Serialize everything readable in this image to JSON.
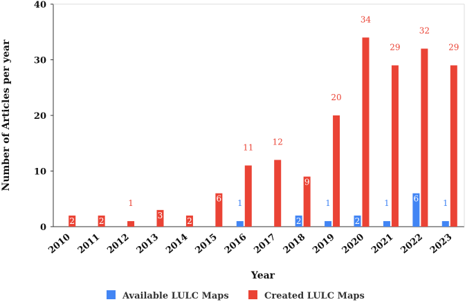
{
  "chart_data": {
    "type": "bar",
    "title": "",
    "xlabel": "Year",
    "ylabel": "Number of Articles per year",
    "ylim": [
      0,
      40
    ],
    "yticks": [
      0,
      10,
      20,
      30,
      40
    ],
    "grid": false,
    "legend_position": "bottom",
    "categories": [
      "2010",
      "2011",
      "2012",
      "2013",
      "2014",
      "2015",
      "2016",
      "2017",
      "2018",
      "2019",
      "2020",
      "2021",
      "2022",
      "2023"
    ],
    "series": [
      {
        "name": "Available LULC Maps",
        "color": "#4285f4",
        "values": [
          0,
          0,
          0,
          0,
          0,
          0,
          1,
          0,
          2,
          1,
          2,
          1,
          6,
          1
        ]
      },
      {
        "name": "Created LULC Maps",
        "color": "#ea4335",
        "values": [
          2,
          2,
          1,
          3,
          2,
          6,
          11,
          12,
          9,
          20,
          34,
          29,
          32,
          29
        ]
      }
    ]
  }
}
